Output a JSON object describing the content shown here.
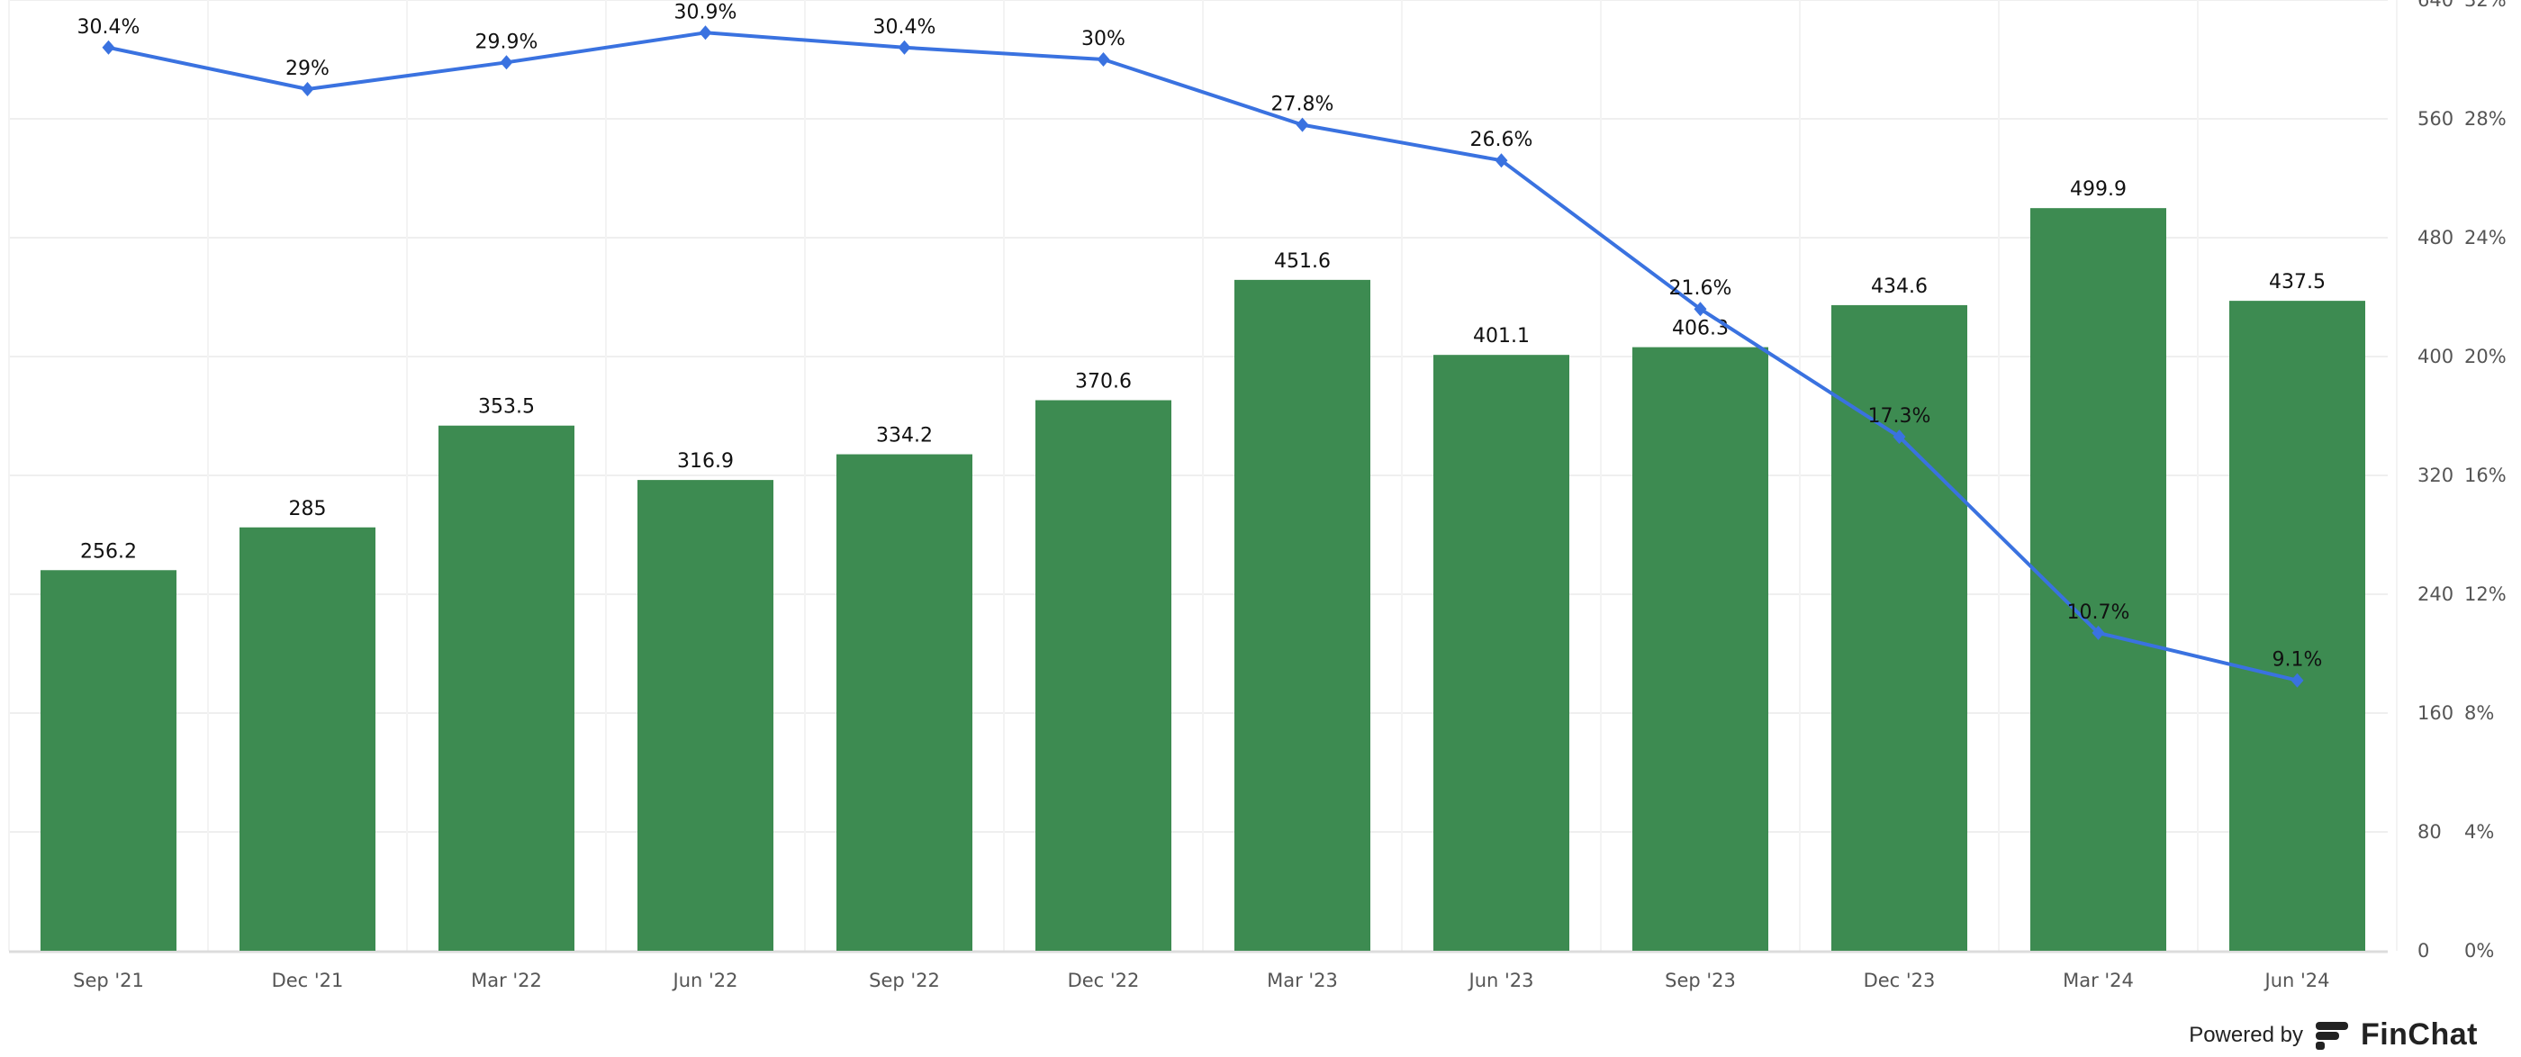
{
  "chart_data": {
    "type": "bar+line",
    "categories": [
      "Sep '21",
      "Dec '21",
      "Mar '22",
      "Jun '22",
      "Sep '22",
      "Dec '22",
      "Mar '23",
      "Jun '23",
      "Sep '23",
      "Dec '23",
      "Mar '24",
      "Jun '24"
    ],
    "series": [
      {
        "type": "bar",
        "axis": "left",
        "color": "#3d8b51",
        "values": [
          256.2,
          285,
          353.5,
          316.9,
          334.2,
          370.6,
          451.6,
          401.1,
          406.3,
          434.6,
          499.9,
          437.5
        ],
        "labels": [
          "256.2",
          "285",
          "353.5",
          "316.9",
          "334.2",
          "370.6",
          "451.6",
          "401.1",
          "406.3",
          "434.6",
          "499.9",
          "437.5"
        ]
      },
      {
        "type": "line",
        "axis": "right",
        "color": "#3a72e0",
        "marker": "diamond",
        "values": [
          30.4,
          29,
          29.9,
          30.9,
          30.4,
          30,
          27.8,
          26.6,
          21.6,
          17.3,
          10.7,
          9.1
        ],
        "labels": [
          "30.4%",
          "29%",
          "29.9%",
          "30.9%",
          "30.4%",
          "30%",
          "27.8%",
          "26.6%",
          "21.6%",
          "17.3%",
          "10.7%",
          "9.1%"
        ]
      }
    ],
    "left_axis": {
      "ylim": [
        0,
        640
      ],
      "ticks": [
        "0",
        "80",
        "160",
        "240",
        "320",
        "400",
        "480",
        "560",
        "640"
      ]
    },
    "right_axis": {
      "ylim": [
        0,
        32
      ],
      "ticks": [
        "0%",
        "4%",
        "8%",
        "12%",
        "16%",
        "20%",
        "24%",
        "28%",
        "32%"
      ]
    },
    "grid": true,
    "legend": "none"
  },
  "footer": {
    "powered_by": "Powered by",
    "brand": "FinChat"
  }
}
